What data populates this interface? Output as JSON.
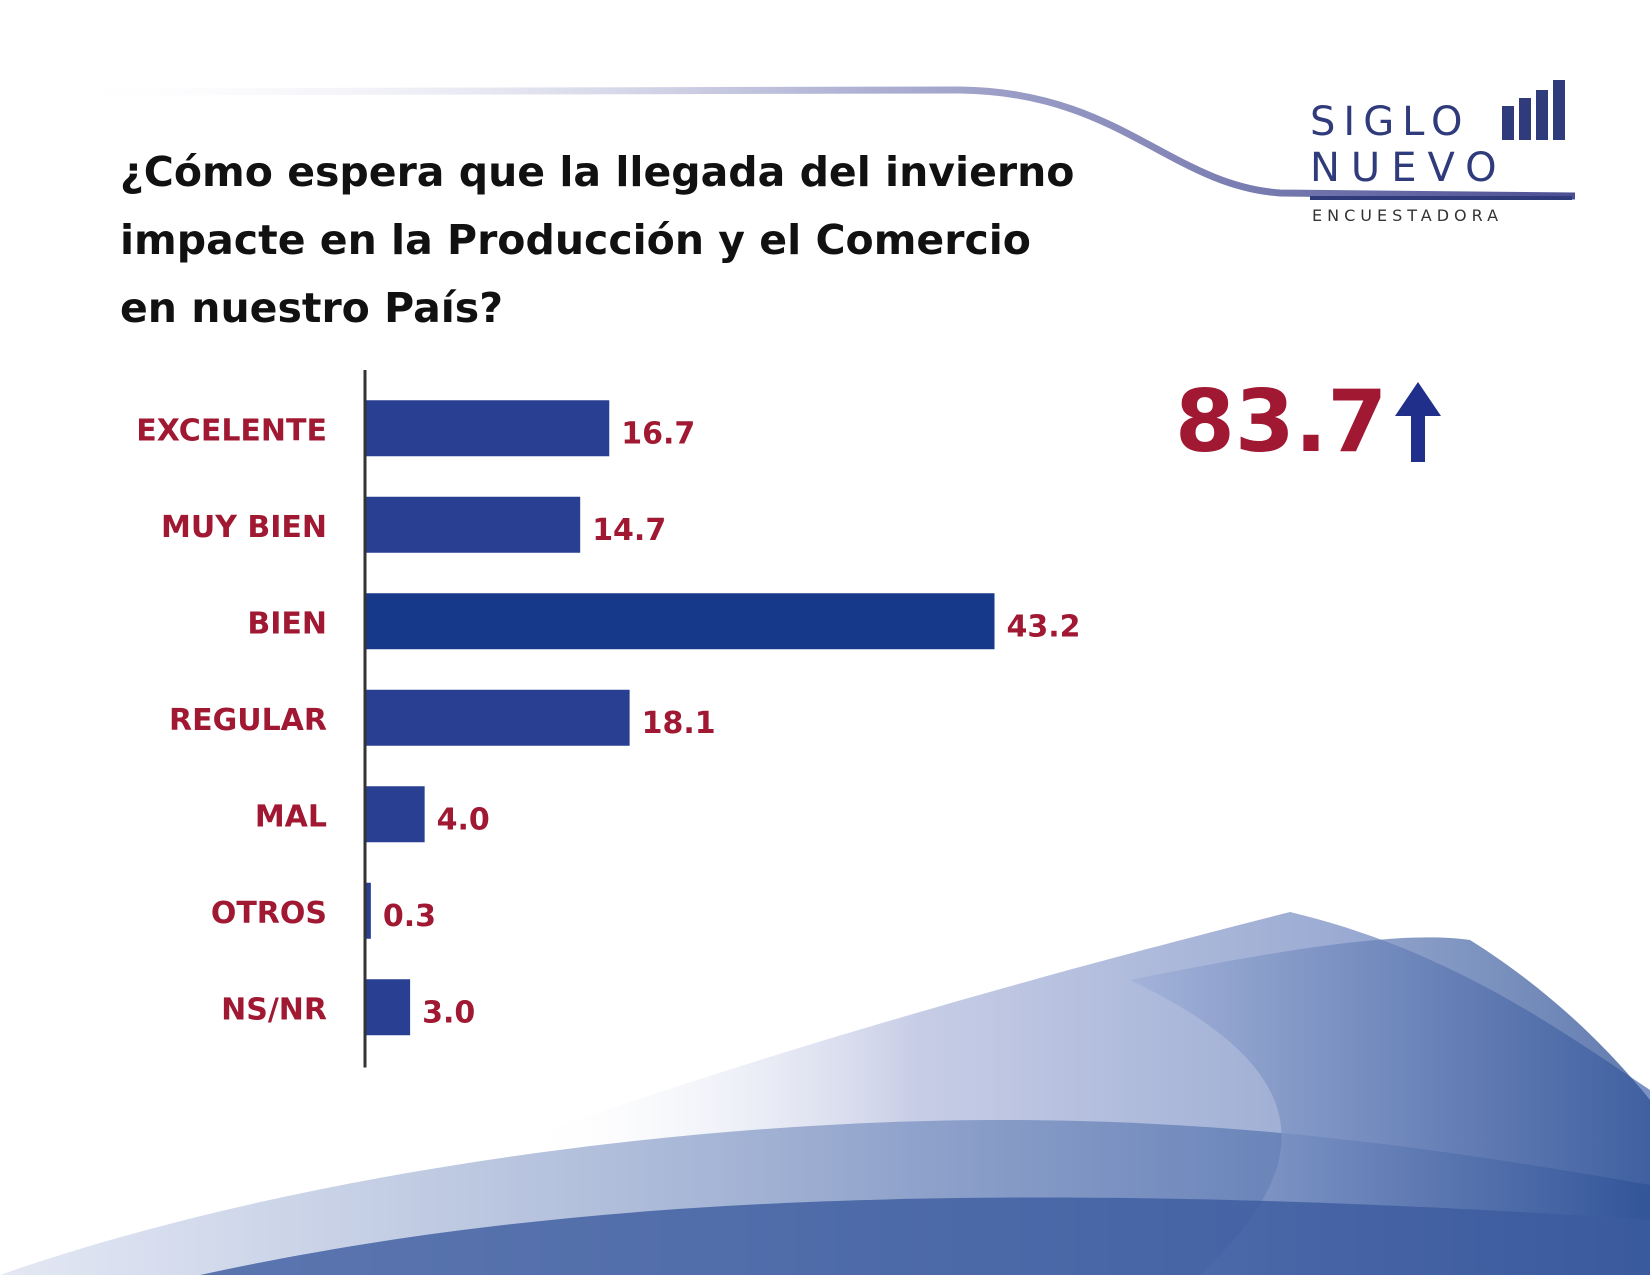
{
  "title": "¿Cómo espera que la llegada del invierno impacte en la Producción y el Comercio en nuestro País?",
  "logo": {
    "line1": "SIGLO",
    "line2": "NUEVO",
    "line3": "ENCUESTADORA",
    "color": "#2f3b7a"
  },
  "highlight": {
    "value": "83.7",
    "icon": "arrow-up-icon",
    "value_color": "#a01832",
    "icon_color": "#1f2f8a"
  },
  "chart_data": {
    "type": "bar",
    "orientation": "horizontal",
    "categories": [
      "EXCELENTE",
      "MUY BIEN",
      "BIEN",
      "REGULAR",
      "MAL",
      "OTROS",
      "NS/NR"
    ],
    "values": [
      16.7,
      14.7,
      43.2,
      18.1,
      4.0,
      0.3,
      3.0
    ],
    "value_labels": [
      "16.7",
      "14.7",
      "43.2",
      "18.1",
      "4.0",
      "0.3",
      "3.0"
    ],
    "xlim": [
      0,
      45
    ],
    "grid": false,
    "bar_color": "#283f92",
    "highlight_bar_color": "#16398a",
    "label_color": "#a01832"
  }
}
